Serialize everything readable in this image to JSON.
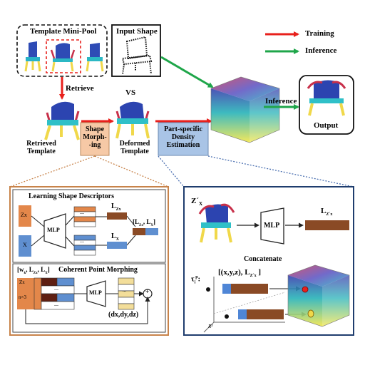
{
  "pool": {
    "title": "Template Mini-Pool"
  },
  "input_shape": {
    "title": "Input Shape"
  },
  "legend": {
    "training": "Training",
    "inference": "Inference",
    "training_color": "#e8201c",
    "inference_color": "#1fa64a"
  },
  "flow": {
    "retrieve": "Retrieve",
    "vs": "VS",
    "retrieved_template_1": "Retrieved",
    "retrieved_template_2": "Template",
    "deformed_template_1": "Deformed",
    "deformed_template_2": "Template",
    "inference": "Inference",
    "output": "Output"
  },
  "shape_morphing": {
    "line1": "Shape",
    "line2": "Morph-",
    "line3": "-ing",
    "color": "#f6c9a6"
  },
  "density": {
    "line1": "Part-specific",
    "line2": "Density",
    "line3": "Estimation",
    "color": "#a9c4e6"
  },
  "left_panel": {
    "descriptors_title": "Learning Shape Descriptors",
    "zx": "Zx",
    "x": "X",
    "mlp": "MLP",
    "dots": "...",
    "lz": "L",
    "lz_sub": "Zx",
    "lx": "L",
    "lx_sub": "X",
    "concat_label": "[L",
    "concat_sub": "Zx",
    "concat_rest": ", L",
    "concat_sub2": "X",
    "concat_end": "]",
    "morph_title": "Coherent Point Morphing",
    "wk_label": "[w",
    "wk_sub": "k",
    "wk_rest": ", L",
    "wk_sub2": "Zx",
    "wk_rest2": ", L",
    "wk_sub3": "X",
    "wk_end": "]",
    "zx2": "Zx",
    "nx3": "n×3",
    "mlp2": "MLP",
    "dxyz": "(dx,dy,dz)",
    "plus": "+"
  },
  "right_panel": {
    "zx_label": "Z´",
    "zx_sub": "X",
    "mlp": "MLP",
    "lz_label": "L",
    "lz_sub": "Z´x",
    "concatenate": "Concatenate",
    "tau": "τ",
    "tau_sub": "i",
    "tau_sup": "p",
    "tau_colon": ":",
    "xyz_label": "[(x,y,z), L",
    "xyz_sub": "Z´x",
    "xyz_end": " ]",
    "r3": "R³"
  }
}
